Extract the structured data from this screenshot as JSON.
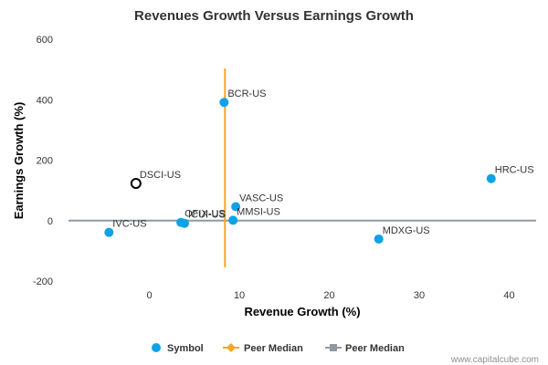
{
  "chart_data": {
    "type": "scatter",
    "title": "Revenues Growth Versus Earnings Growth",
    "xlabel": "Revenue Growth (%)",
    "ylabel": "Earnings Growth (%)",
    "xlim": [
      -9,
      43
    ],
    "ylim": [
      -200,
      600
    ],
    "xticks": [
      0,
      10,
      20,
      30,
      40
    ],
    "yticks": [
      -200,
      0,
      200,
      400,
      600
    ],
    "grid": false,
    "legend_position": "bottom",
    "series": [
      {
        "name": "Symbol",
        "color": "#0ea2e8",
        "points": [
          {
            "label": "BCR-US",
            "x": 8.3,
            "y": 391
          },
          {
            "label": "HRC-US",
            "x": 38.0,
            "y": 139
          },
          {
            "label": "VASC-US",
            "x": 9.6,
            "y": 46
          },
          {
            "label": "MMSI-US",
            "x": 9.3,
            "y": 1
          },
          {
            "label": "ICUI-US",
            "x": 3.9,
            "y": -9
          },
          {
            "label": "OFIX-US",
            "x": 3.5,
            "y": -6
          },
          {
            "label": "IVC-US",
            "x": -4.5,
            "y": -39
          },
          {
            "label": "MDXG-US",
            "x": 25.5,
            "y": -61
          }
        ]
      },
      {
        "name": "",
        "highlight": true,
        "color": "#000000",
        "points": [
          {
            "label": "DSCI-US",
            "x": -1.5,
            "y": 123
          }
        ]
      }
    ],
    "peer_median_x": {
      "name": "Peer Median",
      "value": 8.4,
      "color": "#f6a623"
    },
    "peer_median_y": {
      "name": "Peer Median",
      "value": 0,
      "color": "#8e99a3"
    },
    "label_offsets": {
      "OFIX-US": "OFIX-US",
      "ICUI-US": "ICUI-US"
    }
  },
  "credit": "www.capitalcube.com"
}
